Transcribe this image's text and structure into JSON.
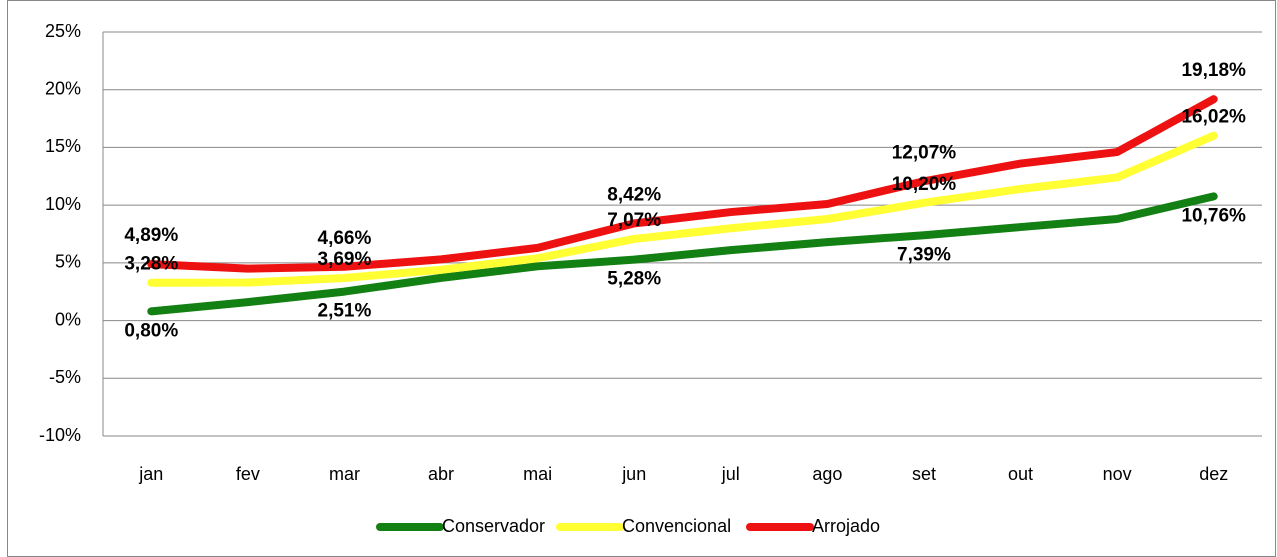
{
  "chart_data": {
    "type": "line",
    "categories": [
      "jan",
      "fev",
      "mar",
      "abr",
      "mai",
      "jun",
      "jul",
      "ago",
      "set",
      "out",
      "nov",
      "dez"
    ],
    "series": [
      {
        "name": "Conservador",
        "color": "#138013",
        "values": [
          0.8,
          1.6,
          2.51,
          3.7,
          4.7,
          5.28,
          6.1,
          6.8,
          7.39,
          8.1,
          8.8,
          10.76
        ],
        "value_labels": [
          "0,80%",
          null,
          "2,51%",
          null,
          null,
          "5,28%",
          null,
          null,
          "7,39%",
          null,
          null,
          "10,76%"
        ]
      },
      {
        "name": "Convencional",
        "color": "#ffff33",
        "values": [
          3.28,
          3.3,
          3.69,
          4.4,
          5.4,
          7.07,
          8.0,
          8.8,
          10.2,
          11.4,
          12.4,
          16.02
        ],
        "value_labels": [
          "3,28%",
          null,
          "3,69%",
          null,
          null,
          "7,07%",
          null,
          null,
          "10,20%",
          null,
          null,
          "16,02%"
        ]
      },
      {
        "name": "Arrojado",
        "color": "#ee1111",
        "values": [
          4.89,
          4.5,
          4.66,
          5.3,
          6.3,
          8.42,
          9.4,
          10.1,
          12.07,
          13.6,
          14.6,
          19.18
        ],
        "value_labels": [
          "4,89%",
          null,
          "4,66%",
          null,
          null,
          "8,42%",
          null,
          null,
          "12,07%",
          null,
          null,
          "19,18%"
        ]
      }
    ],
    "ylim": [
      -10,
      25
    ],
    "yticks": [
      {
        "value": -10,
        "label": "-10%"
      },
      {
        "value": -5,
        "label": "-5%"
      },
      {
        "value": 0,
        "label": "0%"
      },
      {
        "value": 5,
        "label": "5%"
      },
      {
        "value": 10,
        "label": "10%"
      },
      {
        "value": 15,
        "label": "15%"
      },
      {
        "value": 20,
        "label": "20%"
      },
      {
        "value": 25,
        "label": "25%"
      }
    ],
    "grid": true,
    "legend": "bottom"
  }
}
